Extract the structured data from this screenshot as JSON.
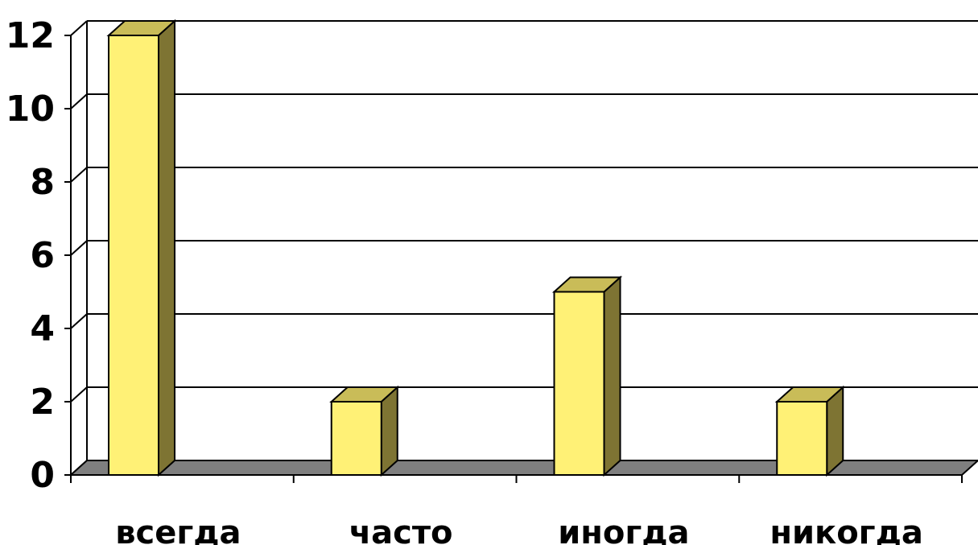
{
  "chart_data": {
    "type": "bar",
    "style": "3d-column",
    "categories": [
      "всегда",
      "часто",
      "иногда",
      "никогда"
    ],
    "values": [
      12,
      2,
      5,
      2
    ],
    "ylim": [
      0,
      12
    ],
    "yticks": [
      "0",
      "2",
      "4",
      "6",
      "8",
      "10",
      "12"
    ],
    "grid": true,
    "legend": "none",
    "colors": {
      "bar_front": "#FFF176",
      "bar_top": "#C9BC58",
      "bar_side": "#7E7433",
      "floor": "#7F7F7F",
      "grid": "#000000"
    }
  }
}
